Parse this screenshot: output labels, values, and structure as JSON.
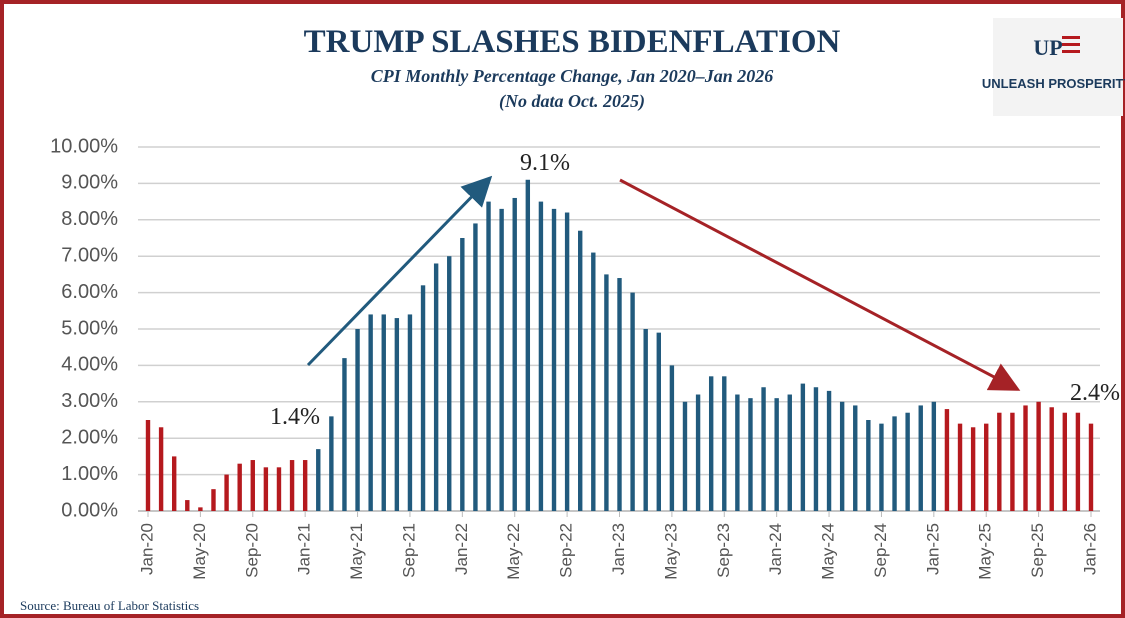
{
  "chart_data": {
    "type": "bar",
    "title": "TRUMP SLASHES BIDENFLATION",
    "subtitle": "CPI Monthly Percentage Change, Jan 2020–Jan 2026",
    "note": "(No data Oct. 2025)",
    "source": "Source: Bureau of Labor Statistics",
    "logo": {
      "mark": "UP",
      "text": "UNLEASH PROSPERITY"
    },
    "annotations": [
      "1.4%",
      "9.1%",
      "2.4%"
    ],
    "categories": [
      "Jan-20",
      null,
      null,
      null,
      "May-20",
      null,
      null,
      null,
      "Sep-20",
      null,
      null,
      null,
      "Jan-21",
      null,
      null,
      null,
      "May-21",
      null,
      null,
      null,
      "Sep-21",
      null,
      null,
      null,
      "Jan-22",
      null,
      null,
      null,
      "May-22",
      null,
      null,
      null,
      "Sep-22",
      null,
      null,
      null,
      "Jan-23",
      null,
      null,
      null,
      "May-23",
      null,
      null,
      null,
      "Sep-23",
      null,
      null,
      null,
      "Jan-24",
      null,
      null,
      null,
      "May-24",
      null,
      null,
      null,
      "Sep-24",
      null,
      null,
      null,
      "Jan-25",
      null,
      null,
      null,
      "May-25",
      null,
      null,
      null,
      "Sep-25",
      null,
      null,
      null,
      "Jan-26"
    ],
    "values": [
      2.5,
      2.3,
      1.5,
      0.3,
      0.1,
      0.6,
      1.0,
      1.3,
      1.4,
      1.2,
      1.2,
      1.4,
      1.4,
      1.7,
      2.6,
      4.2,
      5.0,
      5.4,
      5.4,
      5.3,
      5.4,
      6.2,
      6.8,
      7.0,
      7.5,
      7.9,
      8.5,
      8.3,
      8.6,
      9.1,
      8.5,
      8.3,
      8.2,
      7.7,
      7.1,
      6.5,
      6.4,
      6.0,
      5.0,
      4.9,
      4.0,
      3.0,
      3.2,
      3.7,
      3.7,
      3.2,
      3.1,
      3.4,
      3.1,
      3.2,
      3.5,
      3.4,
      3.3,
      3.0,
      2.9,
      2.5,
      2.4,
      2.6,
      2.7,
      2.9,
      3.0,
      2.8,
      2.4,
      2.3,
      2.4,
      2.7,
      2.7,
      2.9,
      3.0,
      2.85,
      2.7,
      2.7,
      2.4
    ],
    "colors": [
      "#b5191e",
      "#b5191e",
      "#b5191e",
      "#b5191e",
      "#b5191e",
      "#b5191e",
      "#b5191e",
      "#b5191e",
      "#b5191e",
      "#b5191e",
      "#b5191e",
      "#b5191e",
      "#b5191e",
      "#215a7d",
      "#215a7d",
      "#215a7d",
      "#215a7d",
      "#215a7d",
      "#215a7d",
      "#215a7d",
      "#215a7d",
      "#215a7d",
      "#215a7d",
      "#215a7d",
      "#215a7d",
      "#215a7d",
      "#215a7d",
      "#215a7d",
      "#215a7d",
      "#215a7d",
      "#215a7d",
      "#215a7d",
      "#215a7d",
      "#215a7d",
      "#215a7d",
      "#215a7d",
      "#215a7d",
      "#215a7d",
      "#215a7d",
      "#215a7d",
      "#215a7d",
      "#215a7d",
      "#215a7d",
      "#215a7d",
      "#215a7d",
      "#215a7d",
      "#215a7d",
      "#215a7d",
      "#215a7d",
      "#215a7d",
      "#215a7d",
      "#215a7d",
      "#215a7d",
      "#215a7d",
      "#215a7d",
      "#215a7d",
      "#215a7d",
      "#215a7d",
      "#215a7d",
      "#215a7d",
      "#215a7d",
      "#b5191e",
      "#b5191e",
      "#b5191e",
      "#b5191e",
      "#b5191e",
      "#b5191e",
      "#b5191e",
      "#b5191e",
      "#b5191e",
      "#b5191e",
      "#b5191e",
      "#b5191e"
    ],
    "ylim": [
      0,
      10
    ],
    "yticks": [
      {
        "value": 0,
        "label": "0.00%"
      },
      {
        "value": 1,
        "label": "1.00%"
      },
      {
        "value": 2,
        "label": "2.00%"
      },
      {
        "value": 3,
        "label": "3.00%"
      },
      {
        "value": 4,
        "label": "4.00%"
      },
      {
        "value": 5,
        "label": "5.00%"
      },
      {
        "value": 6,
        "label": "6.00%"
      },
      {
        "value": 7,
        "label": "7.00%"
      },
      {
        "value": 8,
        "label": "8.00%"
      },
      {
        "value": 9,
        "label": "9.00%"
      },
      {
        "value": 10,
        "label": "10.00%"
      }
    ],
    "grid": true
  }
}
